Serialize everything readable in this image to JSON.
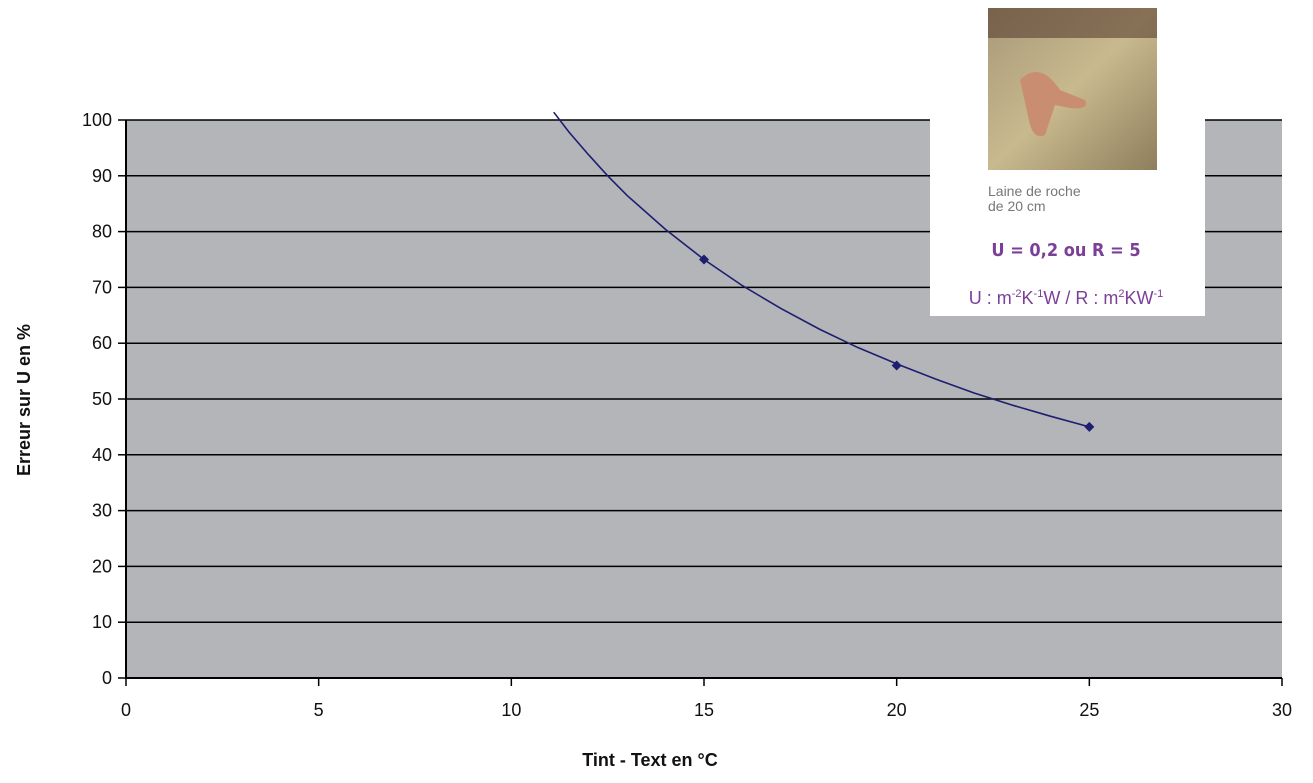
{
  "chart_data": {
    "type": "line",
    "xlabel": "Tint - Text en °C",
    "ylabel": "Erreur sur U en %",
    "xlim": [
      0,
      30
    ],
    "xticks": [
      0,
      5,
      10,
      15,
      20,
      25,
      30
    ],
    "ylim": [
      0,
      100
    ],
    "yticks": [
      0,
      10,
      20,
      30,
      40,
      50,
      60,
      70,
      80,
      90,
      100
    ],
    "grid": true,
    "background": "#b3b5b9",
    "color": "#1e1e70",
    "x": [
      11.1,
      11.5,
      12,
      12.5,
      13,
      14,
      15,
      16,
      17,
      18,
      19,
      20,
      21,
      22,
      23,
      24,
      25
    ],
    "values": [
      101.4,
      97.8,
      93.8,
      90,
      86.5,
      80.4,
      75,
      70.3,
      66.2,
      62.5,
      59.2,
      56.3,
      53.6,
      51.1,
      48.9,
      46.9,
      45
    ],
    "markers": {
      "x": [
        15,
        20,
        25
      ],
      "values": [
        75,
        56,
        45
      ]
    },
    "inset": {
      "caption": [
        "Laine de roche",
        "de 20 cm"
      ],
      "headline": "U = 0,2 ou R = 5",
      "units": [
        {
          "t": "U : m"
        },
        {
          "sup": "-2"
        },
        {
          "t": "K"
        },
        {
          "sup": "-1"
        },
        {
          "t": "W / R : m"
        },
        {
          "sup": "2"
        },
        {
          "t": "KW"
        },
        {
          "sup": "-1"
        }
      ]
    }
  }
}
